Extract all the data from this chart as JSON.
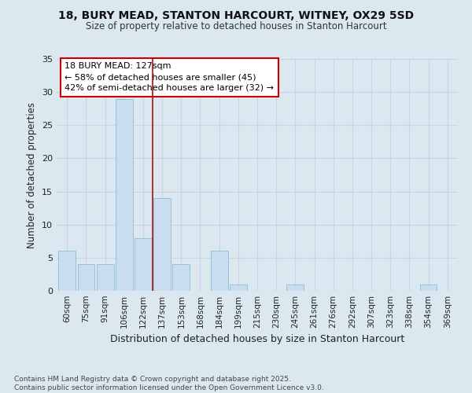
{
  "title_line1": "18, BURY MEAD, STANTON HARCOURT, WITNEY, OX29 5SD",
  "title_line2": "Size of property relative to detached houses in Stanton Harcourt",
  "xlabel": "Distribution of detached houses by size in Stanton Harcourt",
  "ylabel": "Number of detached properties",
  "categories": [
    "60sqm",
    "75sqm",
    "91sqm",
    "106sqm",
    "122sqm",
    "137sqm",
    "153sqm",
    "168sqm",
    "184sqm",
    "199sqm",
    "215sqm",
    "230sqm",
    "245sqm",
    "261sqm",
    "276sqm",
    "292sqm",
    "307sqm",
    "323sqm",
    "338sqm",
    "354sqm",
    "369sqm"
  ],
  "values": [
    6,
    4,
    4,
    29,
    8,
    14,
    4,
    0,
    6,
    1,
    0,
    0,
    1,
    0,
    0,
    0,
    0,
    0,
    0,
    1,
    0
  ],
  "bar_color": "#c8ddf0",
  "bar_edge_color": "#8bbcda",
  "grid_color": "#c8d4e8",
  "background_color": "#dce8f0",
  "vline_x": 4.5,
  "vline_color": "#aa1111",
  "annotation_text": "18 BURY MEAD: 127sqm\n← 58% of detached houses are smaller (45)\n42% of semi-detached houses are larger (32) →",
  "annotation_box_facecolor": "#ffffff",
  "annotation_box_edgecolor": "#cc0000",
  "ylim": [
    0,
    35
  ],
  "yticks": [
    0,
    5,
    10,
    15,
    20,
    25,
    30,
    35
  ],
  "footnote": "Contains HM Land Registry data © Crown copyright and database right 2025.\nContains public sector information licensed under the Open Government Licence v3.0."
}
